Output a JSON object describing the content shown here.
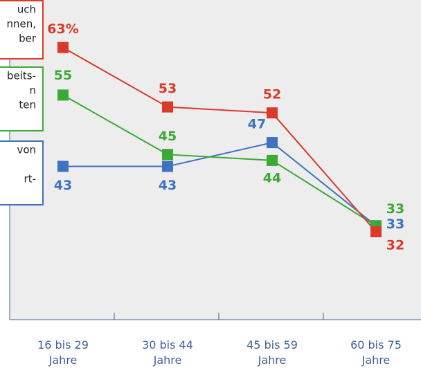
{
  "chart_data": {
    "type": "line",
    "categories": [
      "16 bis 29\nJahre",
      "30 bis 44\nJahre",
      "45 bis 59\nJahre",
      "60 bis 75\nJahre"
    ],
    "ylim": [
      17.2,
      71
    ],
    "series": [
      {
        "color": "#3f72bf",
        "values": [
          43,
          43,
          47,
          33
        ]
      },
      {
        "color": "#3aaa35",
        "values": [
          55,
          45,
          44,
          33
        ]
      },
      {
        "color": "#d93a2b",
        "values": [
          63,
          53,
          52,
          32
        ],
        "value_labels": [
          "63%",
          "53",
          "52",
          "32"
        ]
      }
    ],
    "annotations": [
      {
        "color": "#d93a2b",
        "lines": [
          "uch",
          "nnen,",
          "ber"
        ]
      },
      {
        "color": "#3aaa35",
        "lines": [
          "beits-",
          "n",
          "ten"
        ]
      },
      {
        "color": "#3f72bf",
        "lines": [
          "von",
          "",
          "rt-"
        ]
      }
    ]
  }
}
